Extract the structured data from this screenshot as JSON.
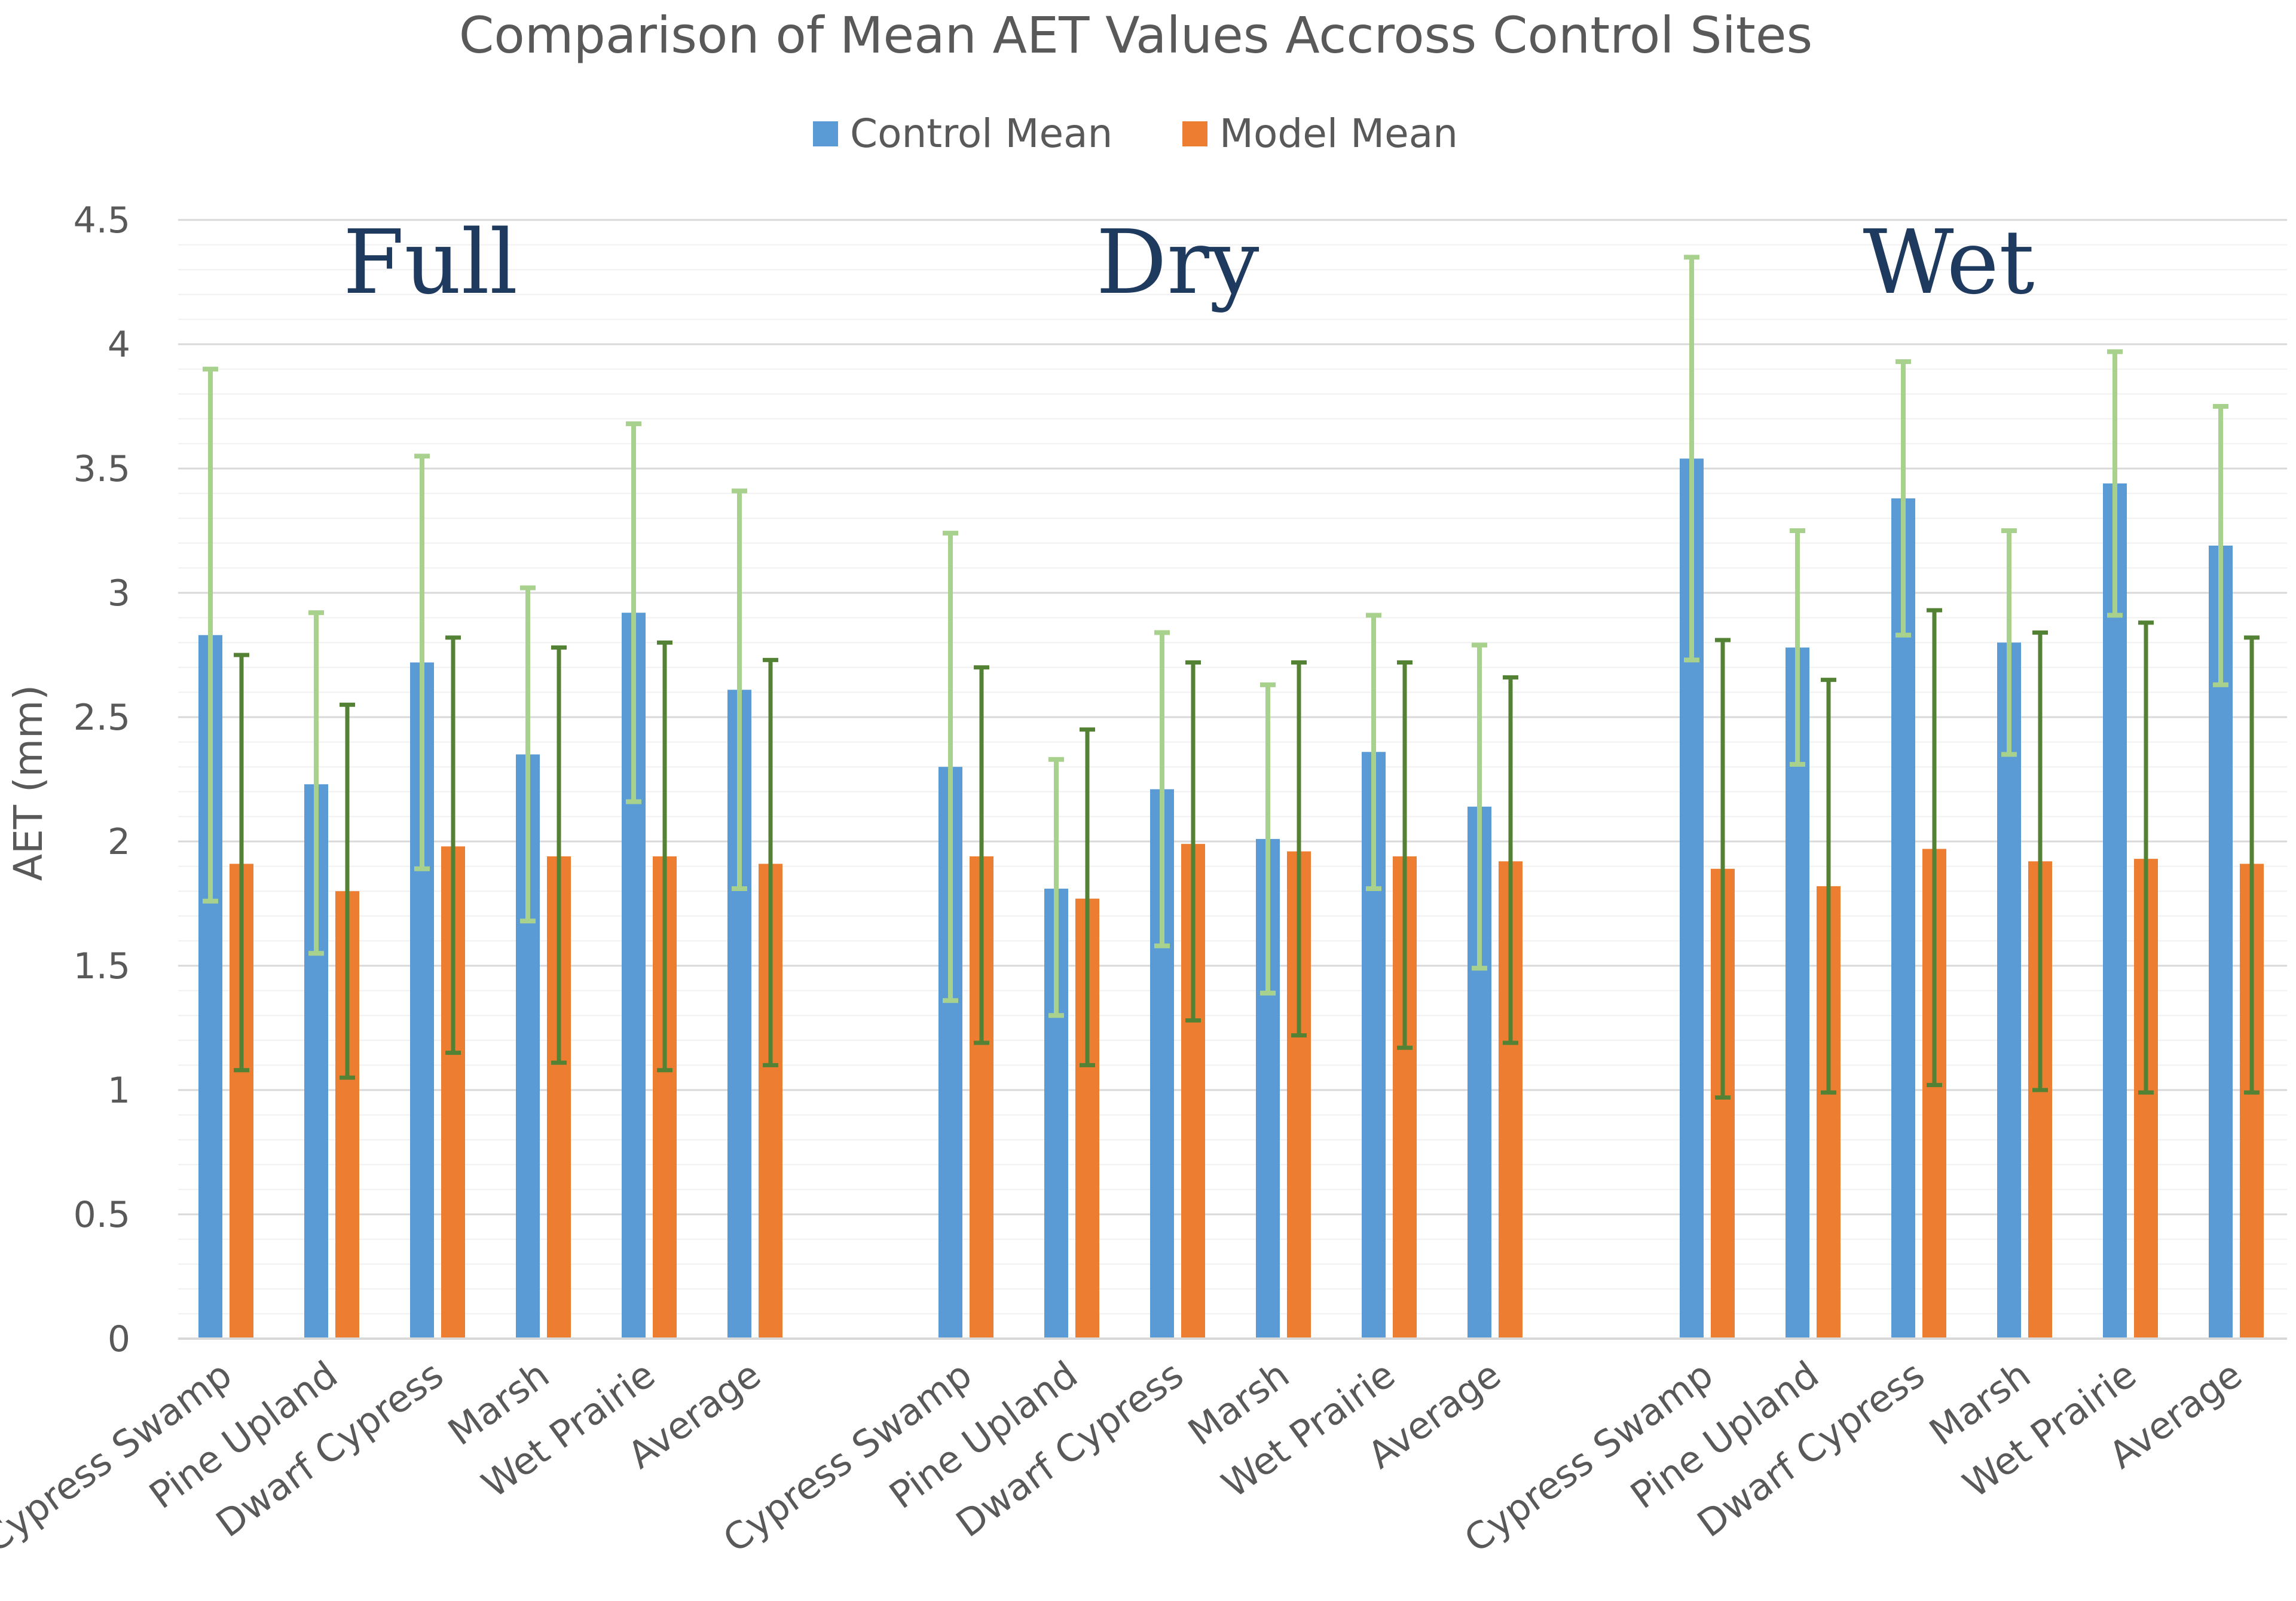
{
  "chart_data": {
    "type": "bar",
    "title": "Comparison of Mean AET Values Accross Control Sites",
    "xlabel": "",
    "ylabel": "AET (mm)",
    "ylim": [
      0,
      4.5
    ],
    "yticks": [
      "0",
      "0.5",
      "1",
      "1.5",
      "2",
      "2.5",
      "3",
      "3.5",
      "4",
      "4.5"
    ],
    "grid": true,
    "legend_position": "top-center",
    "groups": [
      {
        "name": "Full",
        "categories": [
          "Cypress Swamp",
          "Pine Upland",
          "Dwarf Cypress",
          "Marsh",
          "Wet Prairie",
          "Average"
        ],
        "series": [
          {
            "name": "Control Mean",
            "values": [
              2.83,
              2.23,
              2.72,
              2.35,
              2.92,
              2.61
            ],
            "err_low": [
              1.76,
              1.55,
              1.89,
              1.68,
              2.16,
              1.81
            ],
            "err_high": [
              3.9,
              2.92,
              3.55,
              3.02,
              3.68,
              3.41
            ]
          },
          {
            "name": "Model Mean",
            "values": [
              1.91,
              1.8,
              1.98,
              1.94,
              1.94,
              1.91
            ],
            "err_low": [
              1.08,
              1.05,
              1.15,
              1.11,
              1.08,
              1.1
            ],
            "err_high": [
              2.75,
              2.55,
              2.82,
              2.78,
              2.8,
              2.73
            ]
          }
        ]
      },
      {
        "name": "Dry",
        "categories": [
          "Cypress Swamp",
          "Pine Upland",
          "Dwarf Cypress",
          "Marsh",
          "Wet Prairie",
          "Average"
        ],
        "series": [
          {
            "name": "Control Mean",
            "values": [
              2.3,
              1.81,
              2.21,
              2.01,
              2.36,
              2.14
            ],
            "err_low": [
              1.36,
              1.3,
              1.58,
              1.39,
              1.81,
              1.49
            ],
            "err_high": [
              3.24,
              2.33,
              2.84,
              2.63,
              2.91,
              2.79
            ]
          },
          {
            "name": "Model Mean",
            "values": [
              1.94,
              1.77,
              1.99,
              1.96,
              1.94,
              1.92
            ],
            "err_low": [
              1.19,
              1.1,
              1.28,
              1.22,
              1.17,
              1.19
            ],
            "err_high": [
              2.7,
              2.45,
              2.72,
              2.72,
              2.72,
              2.66
            ]
          }
        ]
      },
      {
        "name": "Wet",
        "categories": [
          "Cypress Swamp",
          "Pine Upland",
          "Dwarf Cypress",
          "Marsh",
          "Wet Prairie",
          "Average"
        ],
        "series": [
          {
            "name": "Control Mean",
            "values": [
              3.54,
              2.78,
              3.38,
              2.8,
              3.44,
              3.19
            ],
            "err_low": [
              2.73,
              2.31,
              2.83,
              2.35,
              2.91,
              2.63
            ],
            "err_high": [
              4.35,
              3.25,
              3.93,
              3.25,
              3.97,
              3.75
            ]
          },
          {
            "name": "Model Mean",
            "values": [
              1.89,
              1.82,
              1.97,
              1.92,
              1.93,
              1.91
            ],
            "err_low": [
              0.97,
              0.99,
              1.02,
              1.0,
              0.99,
              0.99
            ],
            "err_high": [
              2.81,
              2.65,
              2.93,
              2.84,
              2.88,
              2.82
            ]
          }
        ]
      }
    ],
    "colors": {
      "control": "#5b9bd5",
      "model": "#ed7d31",
      "control_error": "#a9d18e",
      "model_error": "#548235",
      "grid": "#e6e6e6",
      "axis": "#d9d9d9",
      "group_label": "#1f3a5f"
    }
  }
}
